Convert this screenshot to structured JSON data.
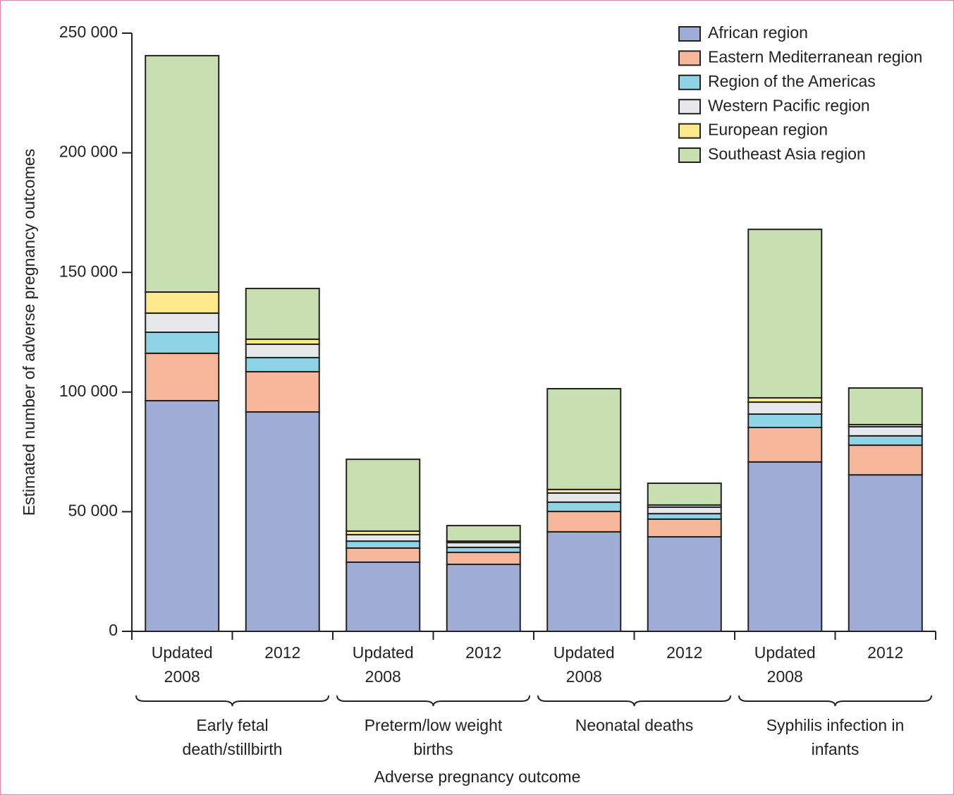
{
  "chart_data": {
    "type": "stacked_bar",
    "categories": [
      "Updated 2008",
      "2012",
      "Updated 2008",
      "2012",
      "Updated 2008",
      "2012",
      "Updated 2008",
      "2012"
    ],
    "groups": [
      "Early fetal death/stillbirth",
      "Preterm/low weight births",
      "Neonatal deaths",
      "Syphilis infection in infants"
    ],
    "xlabel": "Adverse pregnancy outcome",
    "ylabel": "Estimated number of adverse pregnancy outcomes",
    "series": [
      {
        "name": "African region",
        "color": "#9fadd6",
        "values": [
          96400,
          91700,
          28900,
          28000,
          41600,
          39500,
          70800,
          65400
        ]
      },
      {
        "name": "Eastern Mediterranean region",
        "color": "#f7b79b",
        "values": [
          19800,
          16800,
          5900,
          5000,
          8500,
          7400,
          14400,
          12400
        ]
      },
      {
        "name": "Region of the Americas",
        "color": "#8fd3e6",
        "values": [
          8800,
          5900,
          2900,
          2100,
          3900,
          2300,
          5600,
          3900
        ]
      },
      {
        "name": "Western Pacific region",
        "color": "#e5e7ea",
        "values": [
          8000,
          5600,
          2700,
          2000,
          3800,
          2700,
          5000,
          3800
        ]
      },
      {
        "name": "European region",
        "color": "#fde98b",
        "values": [
          8800,
          2100,
          1500,
          600,
          1500,
          900,
          1800,
          900
        ]
      },
      {
        "name": "Southeast Asia region",
        "color": "#c8dfb1",
        "values": [
          98800,
          21200,
          30000,
          6500,
          42100,
          9100,
          70400,
          15300
        ]
      }
    ],
    "ylim": [
      0,
      250000
    ],
    "yticks": [
      0,
      {
        "value": 50000,
        "label": "50 000"
      },
      {
        "value": 100000,
        "label": "100 000"
      },
      {
        "value": 150000,
        "label": "150 000"
      },
      {
        "value": 200000,
        "label": "200 000"
      },
      {
        "value": 250000,
        "label": "250 000"
      }
    ],
    "legend": "upper right",
    "grid": false
  }
}
